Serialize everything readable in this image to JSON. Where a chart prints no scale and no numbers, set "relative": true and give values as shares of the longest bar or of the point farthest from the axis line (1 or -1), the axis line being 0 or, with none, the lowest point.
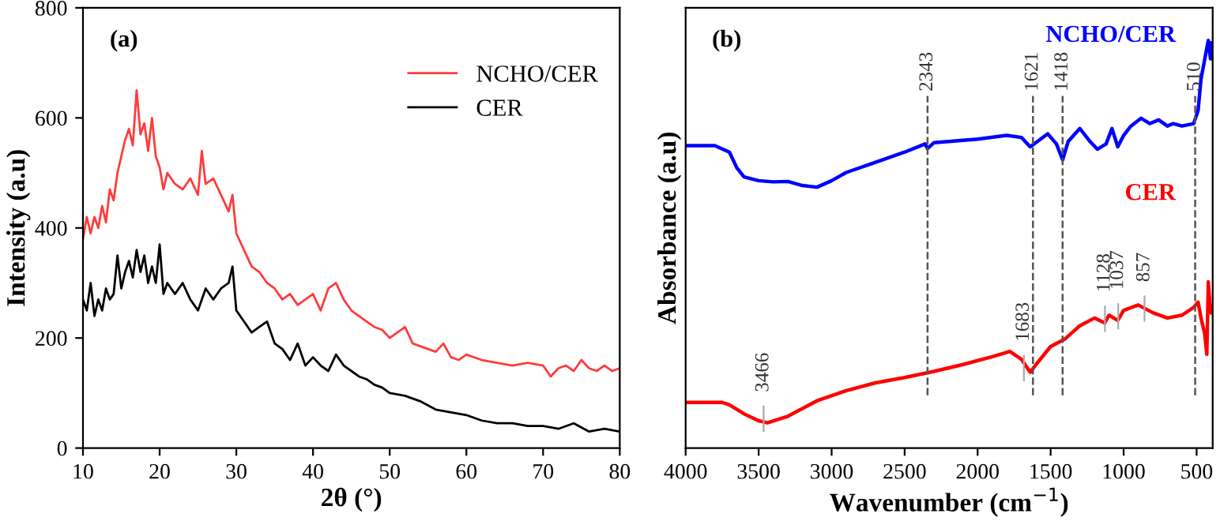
{
  "chart_data": [
    {
      "type": "line",
      "xlabel": "2θ (°)",
      "ylabel": "Intensity (a.u)",
      "annotations": [
        "(a)"
      ],
      "xlim": [
        10,
        80
      ],
      "ylim": [
        0,
        800
      ],
      "xticks": [
        10,
        20,
        30,
        40,
        50,
        60,
        70,
        80
      ],
      "yticks": [
        0,
        200,
        400,
        600,
        800
      ],
      "legend": "top right",
      "grid": false,
      "series": [
        {
          "name": "NCHO/CER",
          "color": "#ff3b3b",
          "x": [
            10,
            10.5,
            11,
            11.5,
            12,
            12.5,
            13,
            13.5,
            14,
            14.5,
            15,
            15.5,
            16,
            16.5,
            17,
            17.5,
            18,
            18.5,
            19,
            19.5,
            20,
            20.5,
            21,
            22,
            23,
            24,
            25,
            25.5,
            26,
            27,
            28,
            29,
            29.5,
            30,
            31,
            32,
            33,
            34,
            35,
            36,
            37,
            38,
            39,
            40,
            41,
            42,
            43,
            44,
            45,
            46,
            47,
            48,
            49,
            50,
            51,
            52,
            53,
            54,
            55,
            56,
            57,
            58,
            59,
            60,
            62,
            64,
            66,
            68,
            70,
            71,
            72,
            73,
            74,
            75,
            76,
            77,
            78,
            79,
            80
          ],
          "values": [
            380,
            420,
            390,
            420,
            400,
            440,
            410,
            470,
            450,
            500,
            530,
            560,
            580,
            550,
            650,
            570,
            590,
            540,
            600,
            530,
            510,
            470,
            500,
            480,
            470,
            490,
            460,
            540,
            480,
            490,
            460,
            430,
            460,
            390,
            360,
            330,
            320,
            300,
            290,
            270,
            280,
            260,
            270,
            280,
            250,
            290,
            300,
            270,
            250,
            240,
            230,
            220,
            215,
            200,
            210,
            220,
            190,
            185,
            180,
            175,
            190,
            165,
            160,
            170,
            160,
            155,
            150,
            155,
            150,
            130,
            145,
            150,
            140,
            160,
            145,
            140,
            150,
            140,
            145
          ]
        },
        {
          "name": "CER",
          "color": "#000000",
          "x": [
            10,
            10.5,
            11,
            11.5,
            12,
            12.5,
            13,
            13.5,
            14,
            14.5,
            15,
            15.5,
            16,
            16.5,
            17,
            17.5,
            18,
            18.5,
            19,
            19.5,
            20,
            20.5,
            21,
            22,
            23,
            24,
            25,
            26,
            27,
            28,
            29,
            29.5,
            30,
            31,
            32,
            33,
            34,
            35,
            36,
            37,
            38,
            39,
            40,
            41,
            42,
            43,
            44,
            45,
            46,
            47,
            48,
            49,
            50,
            52,
            54,
            56,
            58,
            60,
            62,
            64,
            66,
            68,
            70,
            72,
            74,
            76,
            78,
            80
          ],
          "values": [
            270,
            250,
            300,
            240,
            270,
            250,
            290,
            270,
            280,
            350,
            290,
            320,
            340,
            310,
            360,
            320,
            350,
            300,
            330,
            300,
            370,
            280,
            300,
            280,
            300,
            270,
            250,
            290,
            270,
            290,
            300,
            330,
            250,
            230,
            210,
            220,
            230,
            190,
            180,
            160,
            190,
            150,
            165,
            150,
            140,
            170,
            150,
            140,
            130,
            125,
            115,
            110,
            100,
            95,
            85,
            70,
            65,
            60,
            50,
            45,
            45,
            40,
            40,
            35,
            45,
            30,
            35,
            30
          ]
        }
      ]
    },
    {
      "type": "line",
      "relative": true,
      "xlabel": "Wavenumber (cm$^{−1}$)",
      "ylabel": "Absorbance (a.u)",
      "annotations": [
        "(b)",
        {
          "text": "3466",
          "x": 3466,
          "y": 0.062
        },
        {
          "text": "1683",
          "x": 1683,
          "y": 0.186
        },
        {
          "text": "1128",
          "x": 1128,
          "y": 0.307
        },
        {
          "text": "1037",
          "x": 1037,
          "y": 0.313
        },
        {
          "text": "857",
          "x": 857,
          "y": 0.332
        }
      ],
      "xlim": [
        4000,
        390
      ],
      "xticks": [
        4000,
        3500,
        3000,
        2500,
        2000,
        1500,
        1000,
        500
      ],
      "tick_labels": "x",
      "legend": false,
      "grid": false,
      "ref_lines": [
        {
          "axis": "x",
          "value": 2343,
          "label": "2343",
          "line_style": "dashed"
        },
        {
          "axis": "x",
          "value": 1621,
          "label": "1621",
          "line_style": "dashed"
        },
        {
          "axis": "x",
          "value": 1418,
          "label": "1418",
          "line_style": "dashed"
        },
        {
          "axis": "x",
          "value": 510,
          "label": "510",
          "line_style": "dashed"
        }
      ],
      "series": [
        {
          "name": "NCHO/CER",
          "color": "#0000ff",
          "x": [
            4000,
            3800,
            3700,
            3650,
            3600,
            3500,
            3400,
            3300,
            3200,
            3100,
            3000,
            2900,
            2700,
            2500,
            2360,
            2343,
            2300,
            2000,
            1800,
            1700,
            1640,
            1580,
            1520,
            1460,
            1418,
            1380,
            1300,
            1230,
            1180,
            1120,
            1080,
            1040,
            1000,
            950,
            880,
            820,
            760,
            700,
            660,
            600,
            520,
            490,
            470,
            450,
            430,
            420,
            405,
            395
          ],
          "values": [
            0.742,
            0.742,
            0.726,
            0.688,
            0.665,
            0.656,
            0.653,
            0.654,
            0.644,
            0.64,
            0.656,
            0.676,
            0.701,
            0.726,
            0.746,
            0.735,
            0.749,
            0.758,
            0.767,
            0.762,
            0.739,
            0.755,
            0.771,
            0.746,
            0.707,
            0.752,
            0.784,
            0.752,
            0.733,
            0.746,
            0.784,
            0.739,
            0.767,
            0.79,
            0.809,
            0.796,
            0.805,
            0.79,
            0.796,
            0.79,
            0.796,
            0.828,
            0.905,
            0.943,
            0.981,
            1.0,
            0.955,
            0.994
          ]
        },
        {
          "name": "CER",
          "color": "#ff0000",
          "x": [
            4000,
            3750,
            3700,
            3600,
            3500,
            3440,
            3300,
            3100,
            2900,
            2700,
            2500,
            2300,
            2100,
            1900,
            1780,
            1700,
            1640,
            1600,
            1500,
            1400,
            1300,
            1200,
            1130,
            1100,
            1040,
            1000,
            900,
            800,
            700,
            600,
            520,
            490,
            470,
            445,
            430,
            420,
            410,
            400
          ],
          "values": [
            0.112,
            0.112,
            0.106,
            0.084,
            0.067,
            0.062,
            0.078,
            0.116,
            0.141,
            0.16,
            0.173,
            0.188,
            0.205,
            0.224,
            0.237,
            0.218,
            0.186,
            0.205,
            0.249,
            0.268,
            0.3,
            0.319,
            0.307,
            0.326,
            0.313,
            0.338,
            0.351,
            0.332,
            0.319,
            0.326,
            0.345,
            0.358,
            0.319,
            0.281,
            0.23,
            0.408,
            0.358,
            0.332
          ]
        }
      ]
    }
  ]
}
